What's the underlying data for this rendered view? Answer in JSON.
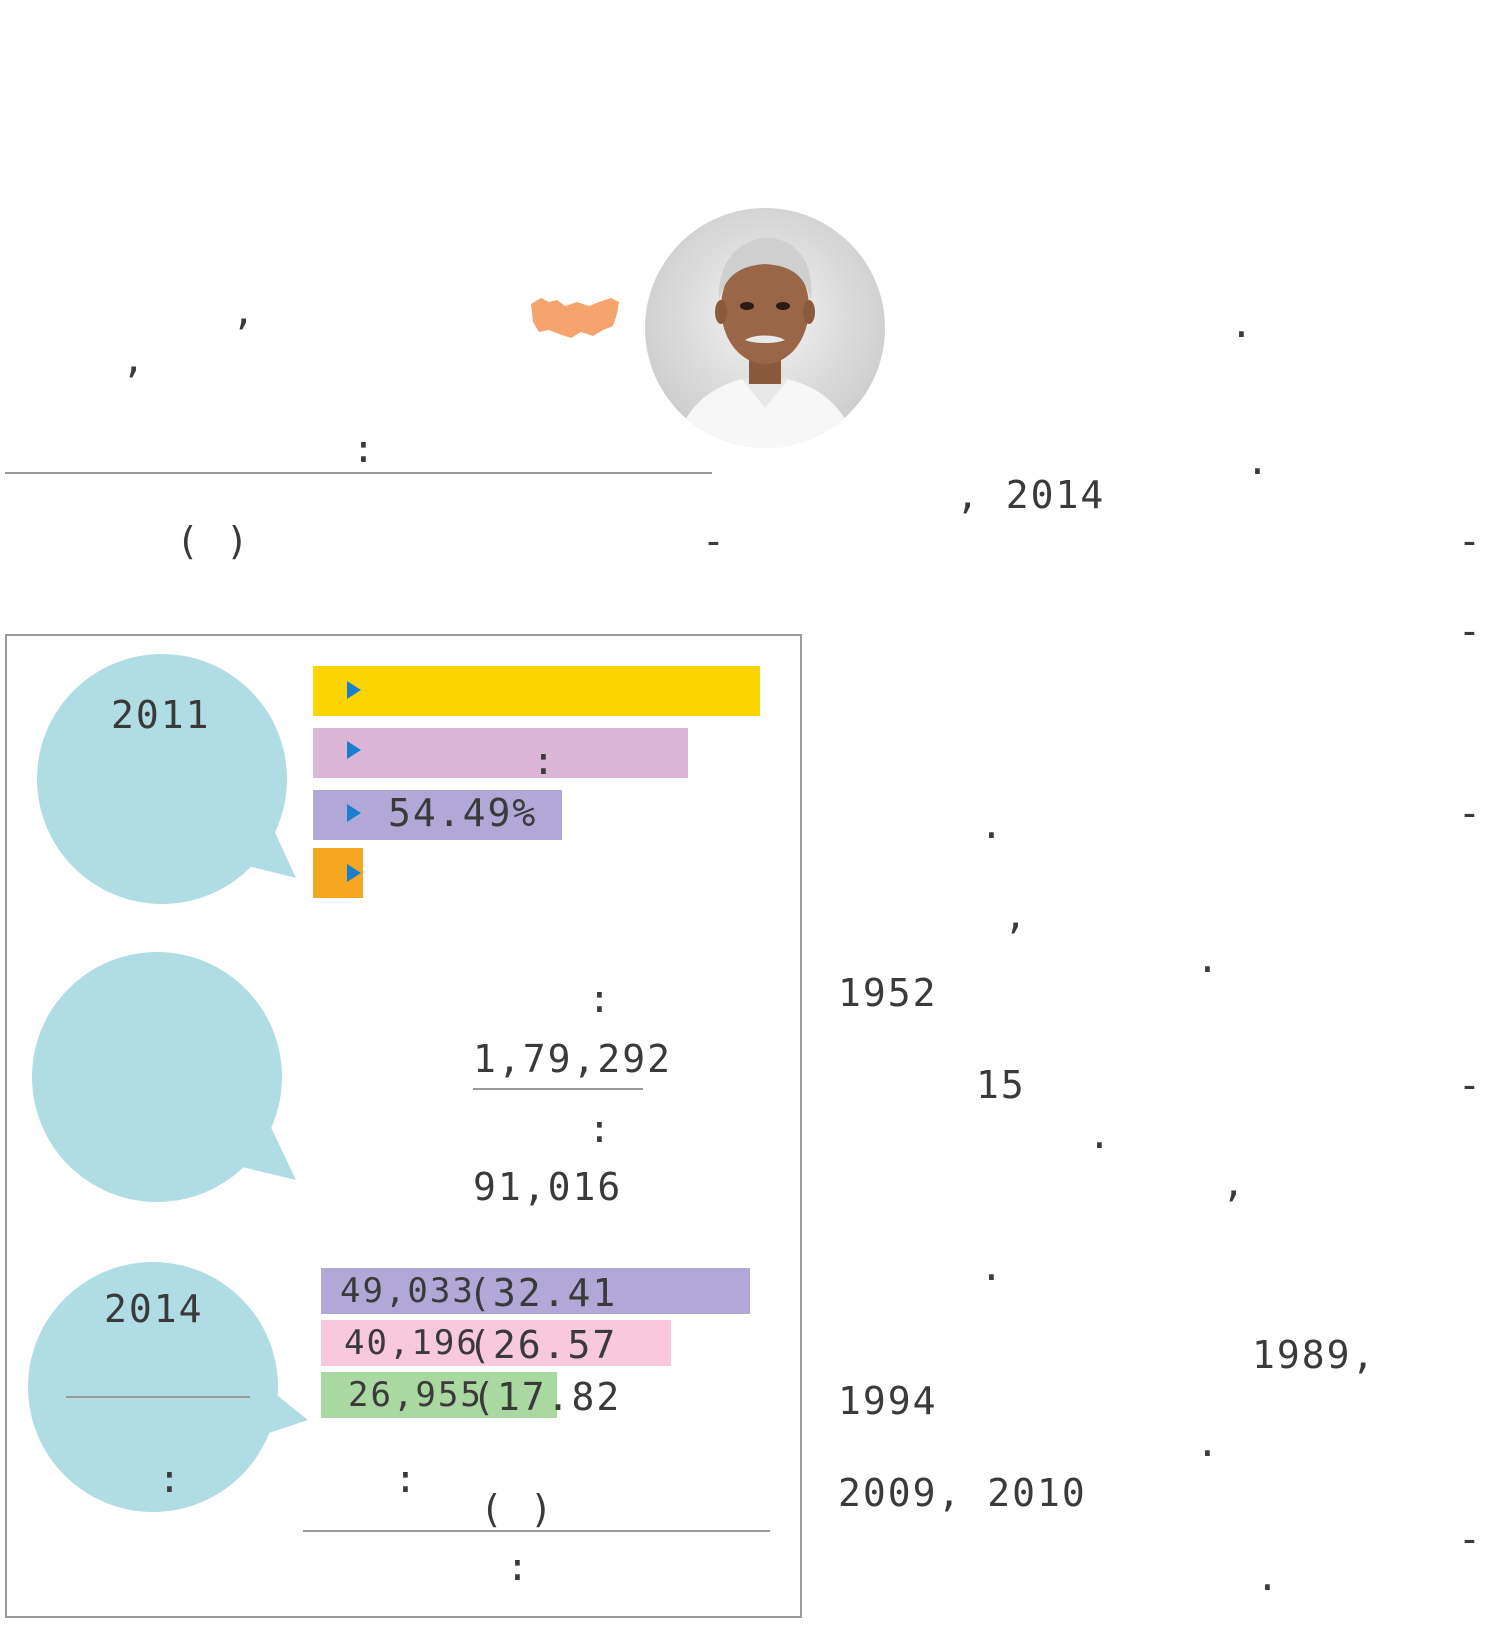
{
  "header_left": {
    "comma_1": ",",
    "comma_2": ",",
    "colon": ":",
    "parens": "(  )"
  },
  "map_color": "#f4a46c",
  "right_column": {
    "dot_1": ".",
    "dot_2": ".",
    "date_text": ", 2014",
    "dash_1": "-",
    "dash_2": "-",
    "dash_3": "-",
    "dash_4": "-",
    "dot_3": ".",
    "comma_3": ",",
    "dot_4": ".",
    "year_1952": "1952",
    "num_15": "15",
    "dash_5": "-",
    "dot_5": ".",
    "comma_4": ",",
    "dot_6": ".",
    "year_1989": "1989,",
    "year_1994": "1994",
    "dot_7": ".",
    "years_2009_2010": "2009, 2010",
    "dash_6": "-",
    "dot_8": "."
  },
  "census_box": {
    "year_2011": "2011",
    "bars": [
      {
        "color": "#fcd400",
        "label": ""
      },
      {
        "color": "#dbb6d6",
        "label": ":"
      },
      {
        "color": "#b2a8d8",
        "label": "54.49%"
      },
      {
        "color": "#f5a623",
        "label": ""
      }
    ],
    "voters_colon_1": ":",
    "voters_total": "1,79,292",
    "voters_colon_2": ":",
    "voters_other": "91,016",
    "year_2014": "2014",
    "colon_bubble": ":",
    "results": [
      {
        "color": "#b2a8d8",
        "votes": "49,033",
        "pct": "(32.41"
      },
      {
        "color": "#f8c8dc",
        "votes": "40,196",
        "pct": "(26.57"
      },
      {
        "color": "#a9d8a0",
        "votes": "26,955",
        "pct": "(17.82"
      }
    ],
    "colon_results": ":",
    "parens_results": "(        )",
    "colon_bottom": ":"
  }
}
